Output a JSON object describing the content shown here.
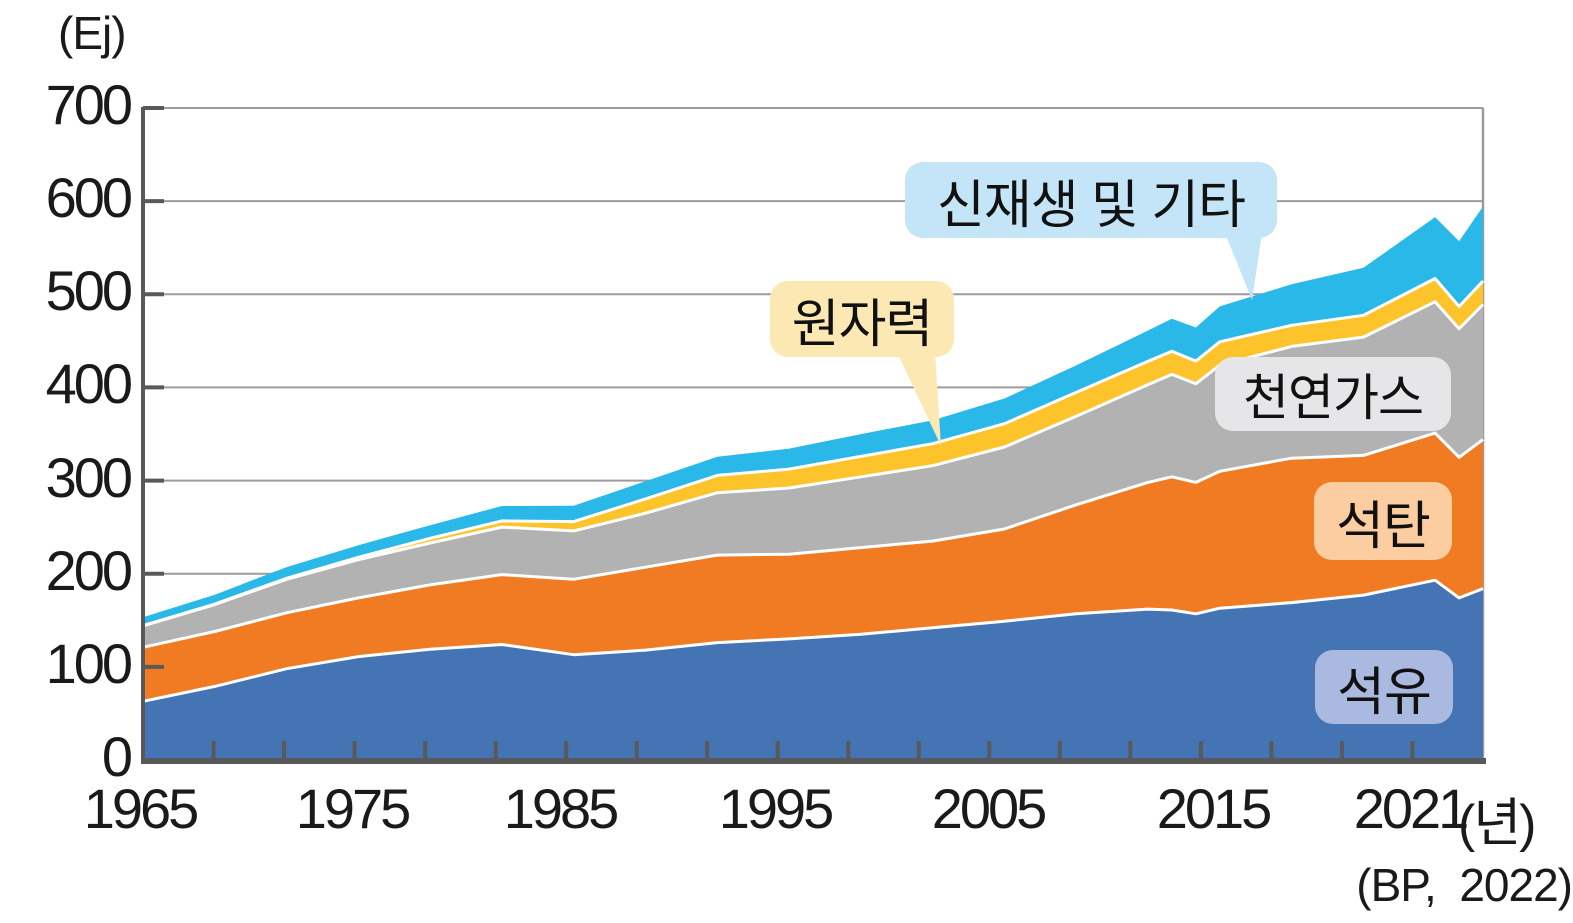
{
  "chart_data": {
    "type": "area",
    "stacked": true,
    "title": "",
    "unit_label": "(Ej)",
    "x_suffix_label": "(년)",
    "source_label": "(BP,  2022)",
    "ylim": [
      0,
      700
    ],
    "ytick_step": 100,
    "grid": true,
    "legend_position": "inline-callouts",
    "grid_color": "#9c9c9c",
    "axis_color": "#58595b",
    "y_tick_labels": [
      "700",
      "600",
      "500",
      "400",
      "300",
      "200",
      "100",
      "0"
    ],
    "x_tick_labels": [
      "1965",
      "1975",
      "1985",
      "1995",
      "2005",
      "2015",
      "2021"
    ],
    "x_years": [
      1965,
      1968,
      1971,
      1974,
      1977,
      1980,
      1983,
      1986,
      1989,
      1992,
      1995,
      1998,
      2001,
      2004,
      2007,
      2008,
      2009,
      2010,
      2013,
      2016,
      2019,
      2020,
      2021
    ],
    "series": [
      {
        "id": "oil",
        "name": "석유",
        "color": "#4574b4",
        "callout_bg": "#aab9e0",
        "values": [
          63,
          79,
          98,
          111,
          119,
          124,
          113,
          118,
          126,
          130,
          135,
          142,
          149,
          157,
          162,
          161,
          157,
          163,
          169,
          177,
          193,
          174,
          184
        ]
      },
      {
        "id": "coal",
        "name": "석탄",
        "color": "#f07b22",
        "callout_bg": "#fbcda0",
        "values": [
          58,
          59,
          60,
          63,
          69,
          75,
          81,
          89,
          94,
          91,
          93,
          93,
          99,
          117,
          136,
          143,
          141,
          147,
          155,
          150,
          158,
          151,
          160
        ]
      },
      {
        "id": "gas",
        "name": "천연가스",
        "color": "#b2b2b2",
        "callout_bg": "#e6e5e7",
        "values": [
          23,
          29,
          36,
          41,
          45,
          51,
          52,
          58,
          67,
          71,
          76,
          81,
          88,
          95,
          105,
          110,
          106,
          114,
          120,
          127,
          141,
          138,
          145
        ]
      },
      {
        "id": "nuclear",
        "name": "원자력",
        "color": "#fdc32a",
        "callout_bg": "#fce8b2",
        "values": [
          0.3,
          0.5,
          1.1,
          2.6,
          5,
          6.7,
          10,
          15.3,
          18.5,
          20.3,
          21.9,
          23.6,
          25.1,
          25.7,
          25.1,
          24.8,
          24.3,
          25,
          22.7,
          23.4,
          24.9,
          23.9,
          25.3
        ]
      },
      {
        "id": "renewables_other",
        "name": "신재생 및 기타",
        "color": "#29b8e8",
        "callout_bg": "#c3e5f7",
        "values": [
          9,
          10,
          12,
          13,
          14,
          16,
          17,
          19,
          20,
          22,
          24,
          25,
          27,
          29,
          33,
          35,
          36,
          38,
          44,
          51,
          66,
          70,
          80
        ]
      }
    ]
  }
}
